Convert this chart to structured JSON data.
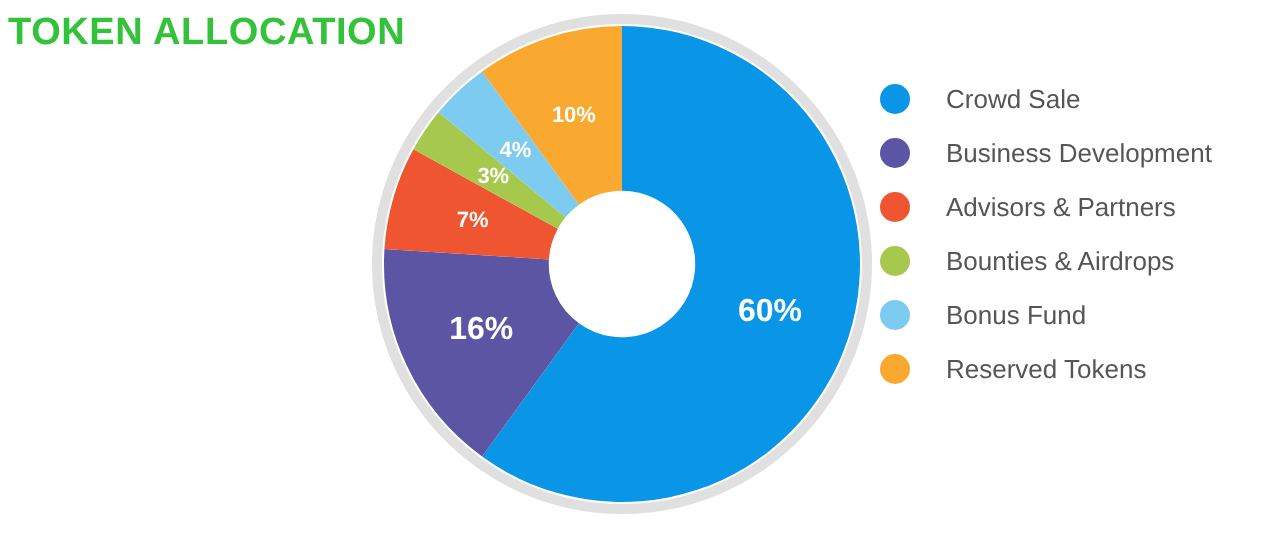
{
  "chart_data": {
    "type": "donut",
    "title": "TOKEN ALLOCATION",
    "categories": [
      "Crowd Sale",
      "Business Development",
      "Advisors & Partners",
      "Bounties & Airdrops",
      "Bonus Fund",
      "Reserved Tokens"
    ],
    "values": [
      60,
      16,
      7,
      3,
      4,
      10
    ],
    "value_labels": [
      "60%",
      "16%",
      "7%",
      "3%",
      "4%",
      "10%"
    ],
    "colors": [
      "#0a96e6",
      "#5b55a3",
      "#ee5530",
      "#a6c84c",
      "#7dcbf0",
      "#f9a930"
    ],
    "legend": "right"
  }
}
